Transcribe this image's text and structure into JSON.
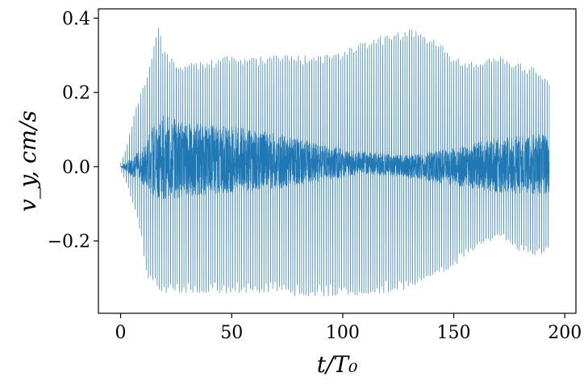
{
  "chart_data": {
    "type": "line",
    "title": "",
    "xlabel": "t/T₀",
    "ylabel": "v_y, cm/s",
    "xlim": [
      -10,
      205
    ],
    "ylim": [
      -0.395,
      0.425
    ],
    "x_ticks": [
      0,
      50,
      100,
      150,
      200
    ],
    "x_tick_labels": [
      "0",
      "50",
      "100",
      "150",
      "200"
    ],
    "y_ticks": [
      -0.2,
      0.0,
      0.2,
      0.4
    ],
    "y_tick_labels": [
      "−0.2",
      "0.0",
      "0.2",
      "0.4"
    ],
    "grid": false,
    "legend": "none",
    "series_color": "#1f77b4",
    "series": [
      {
        "oscillation_period": 1.0,
        "envelope": {
          "x": [
            0,
            3,
            6,
            9,
            12,
            15,
            17,
            20,
            25,
            30,
            40,
            50,
            60,
            70,
            80,
            90,
            100,
            110,
            120,
            130,
            140,
            150,
            160,
            170,
            175,
            180,
            185,
            190,
            193
          ],
          "upper": [
            0.01,
            0.06,
            0.14,
            0.2,
            0.25,
            0.35,
            0.385,
            0.31,
            0.28,
            0.28,
            0.29,
            0.3,
            0.3,
            0.3,
            0.3,
            0.3,
            0.31,
            0.34,
            0.36,
            0.375,
            0.35,
            0.3,
            0.28,
            0.3,
            0.29,
            0.28,
            0.27,
            0.25,
            0.23
          ],
          "lower": [
            -0.01,
            -0.05,
            -0.11,
            -0.18,
            -0.3,
            -0.32,
            -0.33,
            -0.34,
            -0.34,
            -0.34,
            -0.34,
            -0.34,
            -0.34,
            -0.34,
            -0.35,
            -0.35,
            -0.35,
            -0.35,
            -0.34,
            -0.33,
            -0.3,
            -0.27,
            -0.22,
            -0.19,
            -0.21,
            -0.23,
            -0.24,
            -0.24,
            -0.23
          ]
        },
        "inner_band": {
          "x": [
            0,
            10,
            15,
            20,
            30,
            50,
            70,
            90,
            110,
            130,
            150,
            170,
            193
          ],
          "upper": [
            0.0,
            0.05,
            0.12,
            0.14,
            0.12,
            0.11,
            0.09,
            0.06,
            0.04,
            0.03,
            0.05,
            0.08,
            0.09
          ],
          "lower": [
            0.0,
            -0.05,
            -0.08,
            -0.09,
            -0.08,
            -0.07,
            -0.06,
            -0.04,
            -0.02,
            -0.03,
            -0.05,
            -0.07,
            -0.08
          ]
        }
      }
    ]
  }
}
